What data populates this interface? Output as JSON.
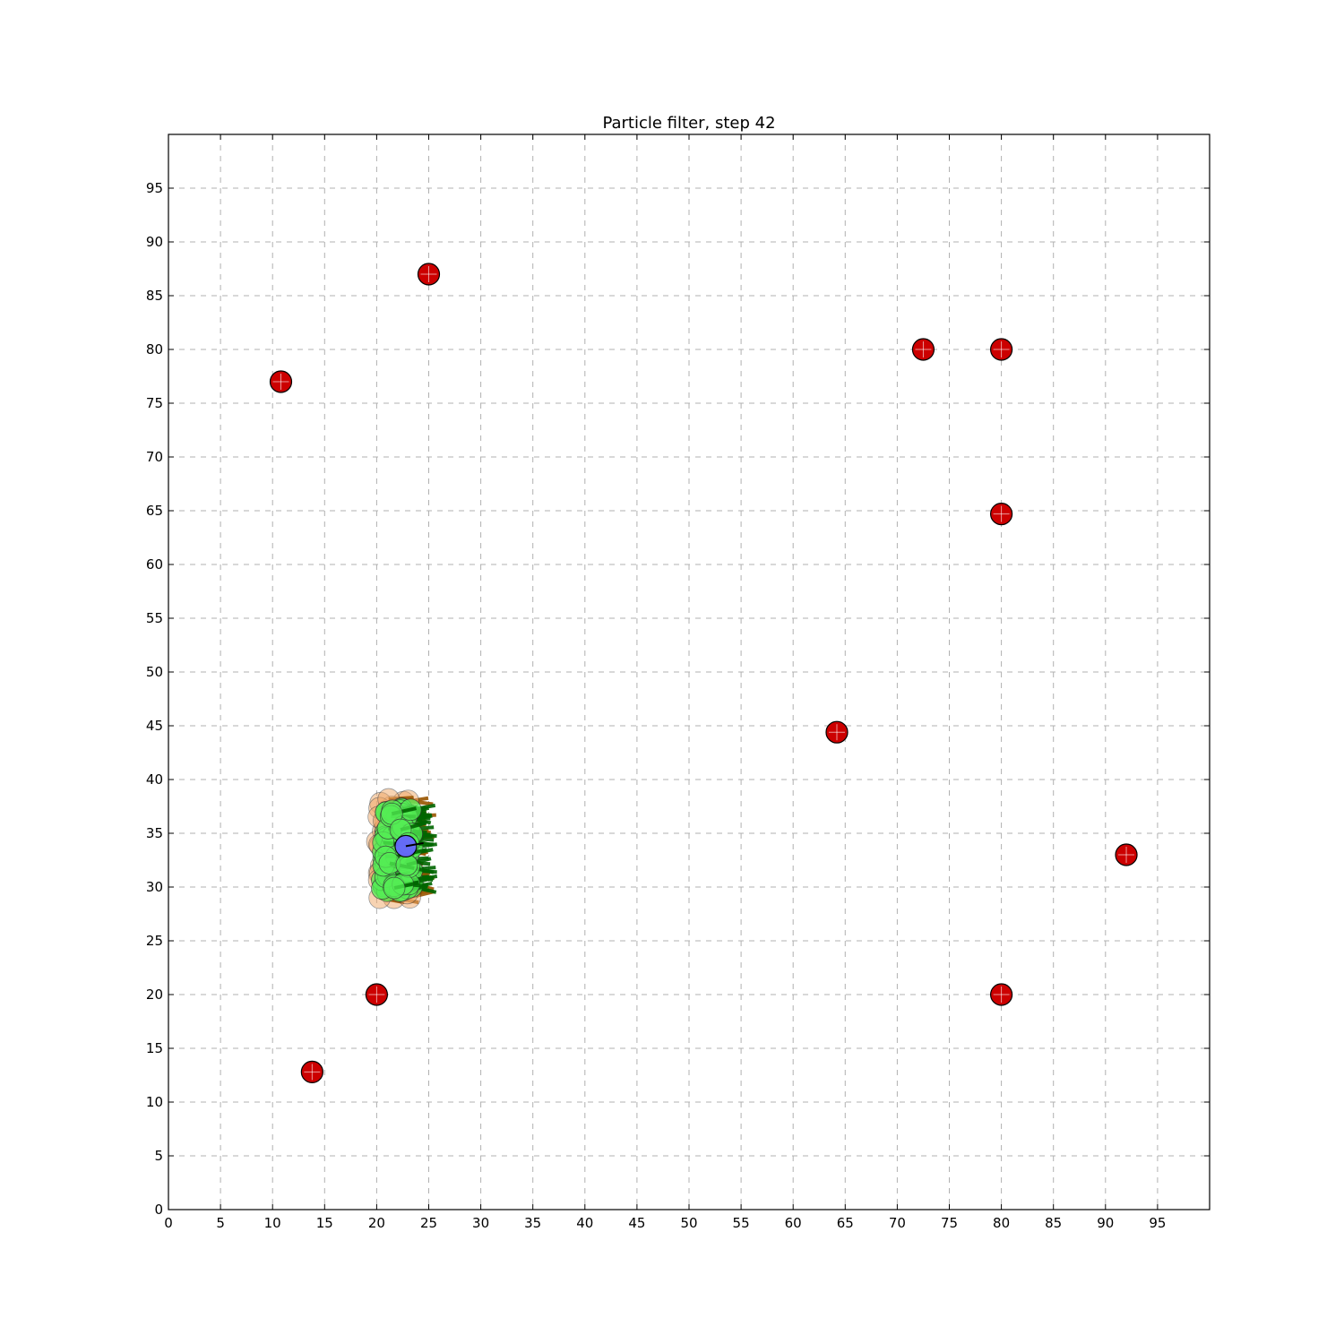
{
  "chart_data": {
    "type": "scatter",
    "title": "Particle filter, step 42",
    "xlabel": "",
    "ylabel": "",
    "xlim": [
      0,
      100
    ],
    "ylim": [
      0,
      100
    ],
    "grid": true,
    "x_ticks": [
      0,
      5,
      10,
      15,
      20,
      25,
      30,
      35,
      40,
      45,
      50,
      55,
      60,
      65,
      70,
      75,
      80,
      85,
      90,
      95
    ],
    "y_ticks": [
      0,
      5,
      10,
      15,
      20,
      25,
      30,
      35,
      40,
      45,
      50,
      55,
      60,
      65,
      70,
      75,
      80,
      85,
      90,
      95
    ],
    "colors": {
      "landmark": "#cc0000",
      "robot": "#6666ff",
      "particle_old": "#f0a868",
      "particle_new": "#55ee55",
      "particle_heading": "#006600",
      "particle_heading_old": "#995500"
    },
    "landmarks": [
      {
        "x": 25,
        "y": 87
      },
      {
        "x": 10.8,
        "y": 77
      },
      {
        "x": 72.5,
        "y": 80
      },
      {
        "x": 80,
        "y": 80
      },
      {
        "x": 80,
        "y": 64.7
      },
      {
        "x": 64.2,
        "y": 44.4
      },
      {
        "x": 92,
        "y": 33
      },
      {
        "x": 20,
        "y": 20
      },
      {
        "x": 80,
        "y": 20
      },
      {
        "x": 13.8,
        "y": 12.8
      }
    ],
    "robot": {
      "x": 22.8,
      "y": 33.8,
      "heading_deg": 10
    },
    "particle_cloud": {
      "x_range": [
        19.5,
        25.5
      ],
      "y_range": [
        28.5,
        38.5
      ]
    }
  }
}
